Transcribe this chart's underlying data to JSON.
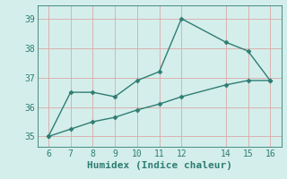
{
  "xlabel": "Humidex (Indice chaleur)",
  "bg_color": "#d4eeeb",
  "line_color": "#2e7d72",
  "grid_color": "#dba8a8",
  "upper_x": [
    6,
    7,
    8,
    9,
    10,
    11,
    12,
    14,
    15,
    16
  ],
  "upper_y": [
    35.0,
    36.5,
    36.5,
    36.35,
    36.9,
    37.2,
    39.0,
    38.2,
    37.9,
    36.9
  ],
  "lower_x": [
    6,
    7,
    8,
    9,
    10,
    11,
    12,
    14,
    15,
    16
  ],
  "lower_y": [
    35.0,
    35.25,
    35.5,
    35.65,
    35.9,
    36.1,
    36.35,
    36.75,
    36.9,
    36.9
  ],
  "xlim": [
    5.5,
    16.5
  ],
  "ylim": [
    34.65,
    39.45
  ],
  "xticks": [
    6,
    7,
    8,
    9,
    10,
    11,
    12,
    14,
    15,
    16
  ],
  "yticks": [
    35,
    36,
    37,
    38,
    39
  ],
  "marker": "D",
  "markersize": 2.5,
  "linewidth": 1.0,
  "fontsize_tick": 7,
  "fontsize_label": 8
}
